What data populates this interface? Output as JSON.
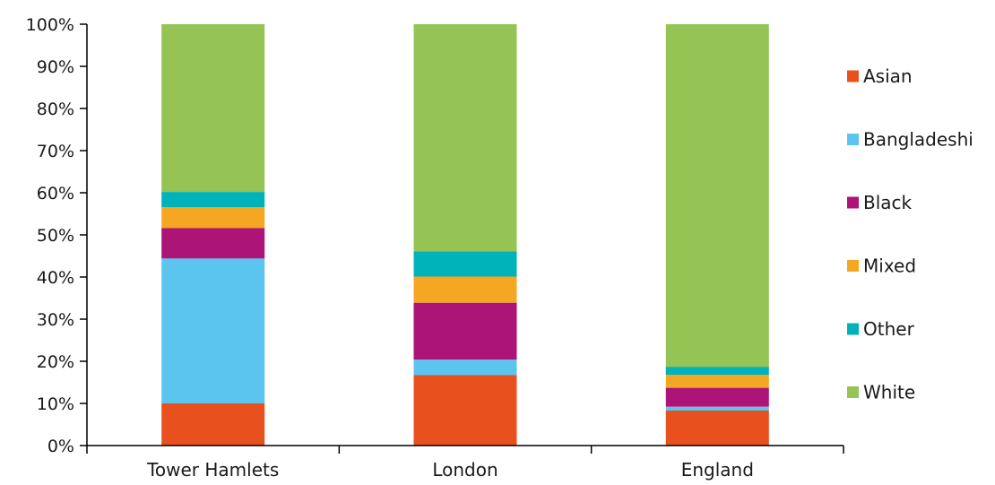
{
  "chart_data": {
    "type": "bar",
    "stacked": true,
    "title": "",
    "xlabel": "",
    "ylabel": "",
    "ylim": [
      0,
      100
    ],
    "y_ticks": [
      "0%",
      "10%",
      "20%",
      "30%",
      "40%",
      "50%",
      "60%",
      "70%",
      "80%",
      "90%",
      "100%"
    ],
    "categories": [
      "Tower Hamlets",
      "London",
      "England"
    ],
    "legend_position": "right",
    "grid": false,
    "series": [
      {
        "name": "Asian",
        "color": "#E8501E",
        "values": [
          10,
          16.7,
          8.3
        ]
      },
      {
        "name": "Bangladeshi",
        "color": "#5BC5F0",
        "values": [
          34.4,
          3.7,
          0.9
        ]
      },
      {
        "name": "Black",
        "color": "#AD1477",
        "values": [
          7.2,
          13.5,
          4.5
        ]
      },
      {
        "name": "Mixed",
        "color": "#F5A623",
        "values": [
          5,
          6.2,
          3.1
        ]
      },
      {
        "name": "Other",
        "color": "#00B2BA",
        "values": [
          3.6,
          6,
          1.9
        ]
      },
      {
        "name": "White",
        "color": "#96C454",
        "values": [
          39.8,
          53.9,
          81.3
        ]
      }
    ]
  }
}
